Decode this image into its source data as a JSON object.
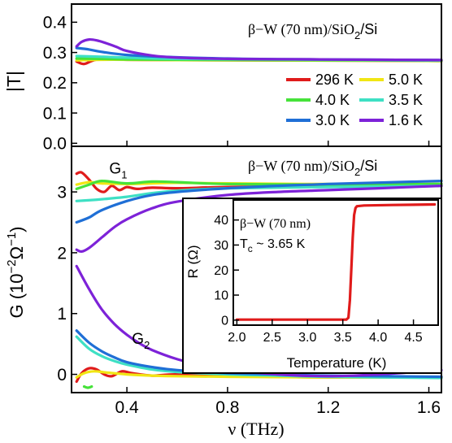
{
  "chart_data": [
    {
      "type": "line",
      "panel": "top",
      "annotation": "β−W (70 nm)/SiO2/Si",
      "annotation_parts": {
        "main": "β−W (70 nm)/SiO",
        "sub": "2",
        "tail": "/Si"
      },
      "ylabel": "|T|",
      "xlim": [
        0.18,
        1.65
      ],
      "ylim": [
        -0.01,
        0.46
      ],
      "yticks": [
        0.0,
        0.1,
        0.2,
        0.3,
        0.4
      ],
      "ytick_labels": [
        "0.0",
        "0.1",
        "0.2",
        "0.3",
        "0.4"
      ],
      "legend_placement": "right-middle",
      "series": [
        {
          "name": "296 K",
          "color": "#e01b1b",
          "x": [
            0.2,
            0.23,
            0.27,
            0.32,
            0.4,
            0.6,
            1.0,
            1.4,
            1.65
          ],
          "y": [
            0.27,
            0.262,
            0.275,
            0.278,
            0.276,
            0.275,
            0.274,
            0.273,
            0.272
          ]
        },
        {
          "name": "5.0 K",
          "color": "#f1e614",
          "x": [
            0.2,
            0.3,
            0.4,
            0.6,
            1.0,
            1.4,
            1.65
          ],
          "y": [
            0.274,
            0.276,
            0.276,
            0.275,
            0.274,
            0.273,
            0.272
          ]
        },
        {
          "name": "4.0 K",
          "color": "#46e23a",
          "x": [
            0.2,
            0.3,
            0.4,
            0.6,
            1.0,
            1.4,
            1.65
          ],
          "y": [
            0.28,
            0.279,
            0.277,
            0.276,
            0.275,
            0.274,
            0.273
          ]
        },
        {
          "name": "3.5 K",
          "color": "#3ee0c4",
          "x": [
            0.2,
            0.3,
            0.4,
            0.6,
            1.0,
            1.4,
            1.65
          ],
          "y": [
            0.288,
            0.286,
            0.283,
            0.279,
            0.277,
            0.275,
            0.274
          ]
        },
        {
          "name": "3.0 K",
          "color": "#1f6fd6",
          "x": [
            0.2,
            0.25,
            0.3,
            0.4,
            0.6,
            0.8,
            1.0,
            1.4,
            1.65
          ],
          "y": [
            0.315,
            0.31,
            0.302,
            0.292,
            0.284,
            0.28,
            0.278,
            0.276,
            0.275
          ]
        },
        {
          "name": "1.6 K",
          "color": "#7d22d8",
          "x": [
            0.2,
            0.22,
            0.25,
            0.28,
            0.32,
            0.36,
            0.4,
            0.5,
            0.6,
            0.8,
            1.0,
            1.4,
            1.65
          ],
          "y": [
            0.32,
            0.335,
            0.343,
            0.34,
            0.33,
            0.318,
            0.305,
            0.29,
            0.283,
            0.279,
            0.278,
            0.276,
            0.275
          ]
        }
      ]
    },
    {
      "type": "line",
      "panel": "bottom",
      "annotation": "β−W (70 nm)/SiO2/Si",
      "annotation_parts": {
        "main": "β−W (70 nm)/SiO",
        "sub": "2",
        "tail": "/Si"
      },
      "ylabel_parts": {
        "a": "G (10",
        "sup1": "−2",
        "b": "Ω",
        "sup2": "−1",
        "c": ")"
      },
      "xlabel": "ν (THz)",
      "xlim": [
        0.18,
        1.65
      ],
      "ylim": [
        -0.3,
        3.75
      ],
      "xticks": [
        0.4,
        0.8,
        1.2,
        1.6
      ],
      "xtick_labels": [
        "0.4",
        "0.8",
        "1.2",
        "1.6"
      ],
      "yticks": [
        0,
        1,
        2,
        3
      ],
      "ytick_labels": [
        "0",
        "1",
        "2",
        "3"
      ],
      "curve_labels": [
        {
          "main": "G",
          "sub": "1",
          "x": 0.33,
          "y": 3.3
        },
        {
          "main": "G",
          "sub": "2",
          "x": 0.42,
          "y": 0.5
        }
      ],
      "G1": [
        {
          "name": "296 K",
          "color": "#e01b1b",
          "x": [
            0.2,
            0.22,
            0.25,
            0.28,
            0.31,
            0.34,
            0.37,
            0.4,
            0.44,
            0.5,
            0.6,
            0.8,
            1.2,
            1.65
          ],
          "y": [
            3.3,
            3.32,
            3.2,
            3.05,
            3.0,
            3.1,
            3.03,
            3.08,
            3.05,
            3.07,
            3.06,
            3.08,
            3.1,
            3.1
          ]
        },
        {
          "name": "5.0 K",
          "color": "#f1e614",
          "x": [
            0.2,
            0.25,
            0.3,
            0.4,
            0.5,
            0.6,
            0.8,
            1.2,
            1.65
          ],
          "y": [
            3.12,
            3.16,
            3.14,
            3.13,
            3.14,
            3.15,
            3.14,
            3.13,
            3.13
          ]
        },
        {
          "name": "4.0 K",
          "color": "#46e23a",
          "x": [
            0.2,
            0.25,
            0.3,
            0.4,
            0.5,
            0.6,
            0.8,
            1.2,
            1.65
          ],
          "y": [
            3.05,
            3.12,
            3.18,
            3.14,
            3.17,
            3.16,
            3.13,
            3.12,
            3.13
          ]
        },
        {
          "name": "3.5 K",
          "color": "#3ee0c4",
          "x": [
            0.2,
            0.3,
            0.4,
            0.5,
            0.6,
            0.8,
            1.2,
            1.65
          ],
          "y": [
            2.85,
            2.88,
            2.92,
            2.98,
            3.02,
            3.06,
            3.08,
            3.1
          ]
        },
        {
          "name": "3.0 K",
          "color": "#1f6fd6",
          "x": [
            0.2,
            0.25,
            0.3,
            0.4,
            0.5,
            0.6,
            0.8,
            1.0,
            1.2,
            1.65
          ],
          "y": [
            2.5,
            2.58,
            2.7,
            2.85,
            2.95,
            3.0,
            3.06,
            3.1,
            3.13,
            3.18
          ]
        },
        {
          "name": "1.6 K",
          "color": "#7d22d8",
          "x": [
            0.2,
            0.22,
            0.25,
            0.3,
            0.35,
            0.4,
            0.5,
            0.6,
            0.8,
            1.0,
            1.2,
            1.4,
            1.65
          ],
          "y": [
            2.05,
            2.02,
            2.08,
            2.25,
            2.42,
            2.55,
            2.73,
            2.84,
            2.95,
            3.0,
            3.03,
            3.06,
            3.1
          ]
        }
      ],
      "G2": [
        {
          "name": "296 K",
          "color": "#e01b1b",
          "x": [
            0.2,
            0.22,
            0.25,
            0.28,
            0.31,
            0.34,
            0.38,
            0.42,
            0.5,
            0.6,
            0.8,
            1.2,
            1.65
          ],
          "y": [
            -0.12,
            0.02,
            0.1,
            0.08,
            0.0,
            -0.03,
            0.05,
            0.02,
            -0.02,
            0.0,
            -0.03,
            -0.05,
            -0.05
          ]
        },
        {
          "name": "4.0 K",
          "color": "#46e23a",
          "x": [
            0.23,
            0.245,
            0.26
          ],
          "y": [
            -0.2,
            -0.22,
            -0.2
          ]
        },
        {
          "name": "5.0 K",
          "color": "#f1e614",
          "x": [
            0.2,
            0.23,
            0.27,
            0.32,
            0.4,
            0.5,
            0.6,
            0.8,
            1.2,
            1.65
          ],
          "y": [
            -0.05,
            0.02,
            0.05,
            0.03,
            0.0,
            -0.02,
            -0.03,
            -0.04,
            -0.05,
            -0.05
          ]
        },
        {
          "name": "3.5 K",
          "color": "#3ee0c4",
          "x": [
            0.2,
            0.25,
            0.3,
            0.35,
            0.4,
            0.5,
            0.6,
            0.8,
            1.0,
            1.2,
            1.65
          ],
          "y": [
            0.62,
            0.42,
            0.3,
            0.22,
            0.16,
            0.08,
            0.04,
            0.0,
            -0.02,
            -0.04,
            -0.06
          ]
        },
        {
          "name": "3.0 K",
          "color": "#1f6fd6",
          "x": [
            0.2,
            0.25,
            0.3,
            0.35,
            0.4,
            0.5,
            0.6,
            0.8,
            1.0,
            1.2,
            1.65
          ],
          "y": [
            0.72,
            0.52,
            0.38,
            0.28,
            0.2,
            0.12,
            0.07,
            0.02,
            0.0,
            -0.02,
            -0.04
          ]
        },
        {
          "name": "1.6 K",
          "color": "#7d22d8",
          "x": [
            0.2,
            0.25,
            0.3,
            0.35,
            0.4,
            0.45,
            0.5,
            0.6,
            0.7,
            0.8,
            1.0,
            1.2,
            1.4,
            1.65
          ],
          "y": [
            1.78,
            1.4,
            1.07,
            0.83,
            0.65,
            0.51,
            0.4,
            0.25,
            0.15,
            0.08,
            0.0,
            -0.03,
            0.0,
            0.07
          ]
        }
      ]
    },
    {
      "type": "line",
      "panel": "inset",
      "annotation_line1": "β−W (70 nm)",
      "annotation_line2_parts": {
        "main": "T",
        "sub": "c",
        "tail": " ~ 3.65 K"
      },
      "xlabel": "Temperature (K)",
      "ylabel": "R (Ω)",
      "xlim": [
        1.95,
        4.85
      ],
      "ylim": [
        -2,
        48
      ],
      "xticks": [
        2.0,
        2.5,
        3.0,
        3.5,
        4.0,
        4.5
      ],
      "xtick_labels": [
        "2.0",
        "2.5",
        "3.0",
        "3.5",
        "4.0",
        "4.5"
      ],
      "yticks": [
        0,
        10,
        20,
        30,
        40
      ],
      "ytick_labels": [
        "0",
        "10",
        "20",
        "30",
        "40"
      ],
      "series": [
        {
          "name": "R",
          "color": "#e01b1b",
          "x": [
            2.0,
            3.0,
            3.55,
            3.58,
            3.6,
            3.62,
            3.64,
            3.66,
            3.68,
            3.7,
            3.8,
            4.2,
            4.8
          ],
          "y": [
            0.2,
            0.2,
            0.2,
            1.0,
            8.0,
            20.0,
            33.0,
            42.0,
            44.8,
            45.5,
            45.8,
            46.0,
            46.2
          ]
        }
      ]
    }
  ]
}
